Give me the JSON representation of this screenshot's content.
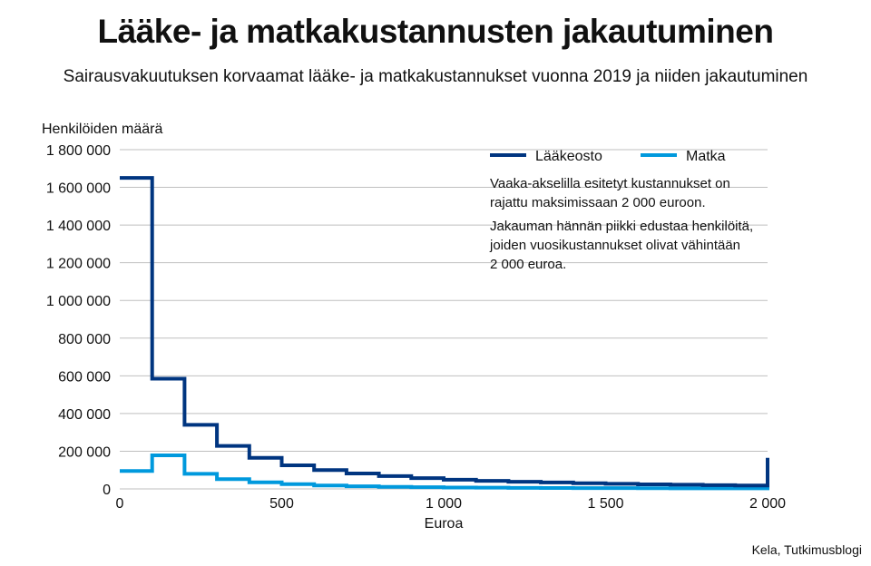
{
  "title": "Lääke- ja matkakustannusten jakautuminen",
  "subtitle": "Sairausvakuutuksen korvaamat lääke- ja matkakustannukset vuonna 2019 ja niiden jakautuminen",
  "source": "Kela, Tutkimusblogi",
  "colors": {
    "laakeosto": "#003580",
    "matka": "#0099dd",
    "grid": "#bfbfbf"
  },
  "annotations": [
    [
      "Vaaka-akselilla esitetyt kustannukset on",
      "rajattu maksimissaan 2 000 euroon."
    ],
    [
      "Jakauman hännän piikki edustaa henkilöitä,",
      "joiden vuosikustannukset olivat vähintään",
      "2 000 euroa."
    ]
  ],
  "chart_data": {
    "type": "line",
    "step": true,
    "ylabel": "Henkilöiden määrä",
    "xlabel": "Euroa",
    "xlim": [
      0,
      2000
    ],
    "ylim": [
      0,
      1800000
    ],
    "x_ticks": [
      0,
      500,
      1000,
      1500,
      2000
    ],
    "x_tick_labels": [
      "0",
      "500",
      "1 000",
      "1 500",
      "2 000"
    ],
    "y_ticks": [
      0,
      200000,
      400000,
      600000,
      800000,
      1000000,
      1200000,
      1400000,
      1600000,
      1800000
    ],
    "y_tick_labels": [
      "0",
      "200 000",
      "400 000",
      "600 000",
      "800 000",
      "1 000 000",
      "1 200 000",
      "1 400 000",
      "1 600 000",
      "1 800 000"
    ],
    "grid": true,
    "legend_position": "top-right",
    "bin_edges": [
      0,
      100,
      200,
      300,
      400,
      500,
      600,
      700,
      800,
      900,
      1000,
      1100,
      1200,
      1300,
      1400,
      1500,
      1600,
      1700,
      1800,
      1900,
      2000
    ],
    "series": [
      {
        "name": "Lääkeosto",
        "values": [
          1650000,
          585000,
          340000,
          228000,
          165000,
          125000,
          100000,
          82000,
          68000,
          57000,
          49000,
          43000,
          38000,
          34000,
          30000,
          27000,
          24000,
          22000,
          20000,
          18000
        ],
        "tail_spike": 165000
      },
      {
        "name": "Matka",
        "values": [
          95000,
          178000,
          80000,
          52000,
          35000,
          25000,
          18000,
          14000,
          11000,
          9000,
          7500,
          6500,
          5500,
          5000,
          4500,
          4000,
          3500,
          3200,
          3000,
          2800
        ],
        "tail_spike": 45000
      }
    ]
  }
}
